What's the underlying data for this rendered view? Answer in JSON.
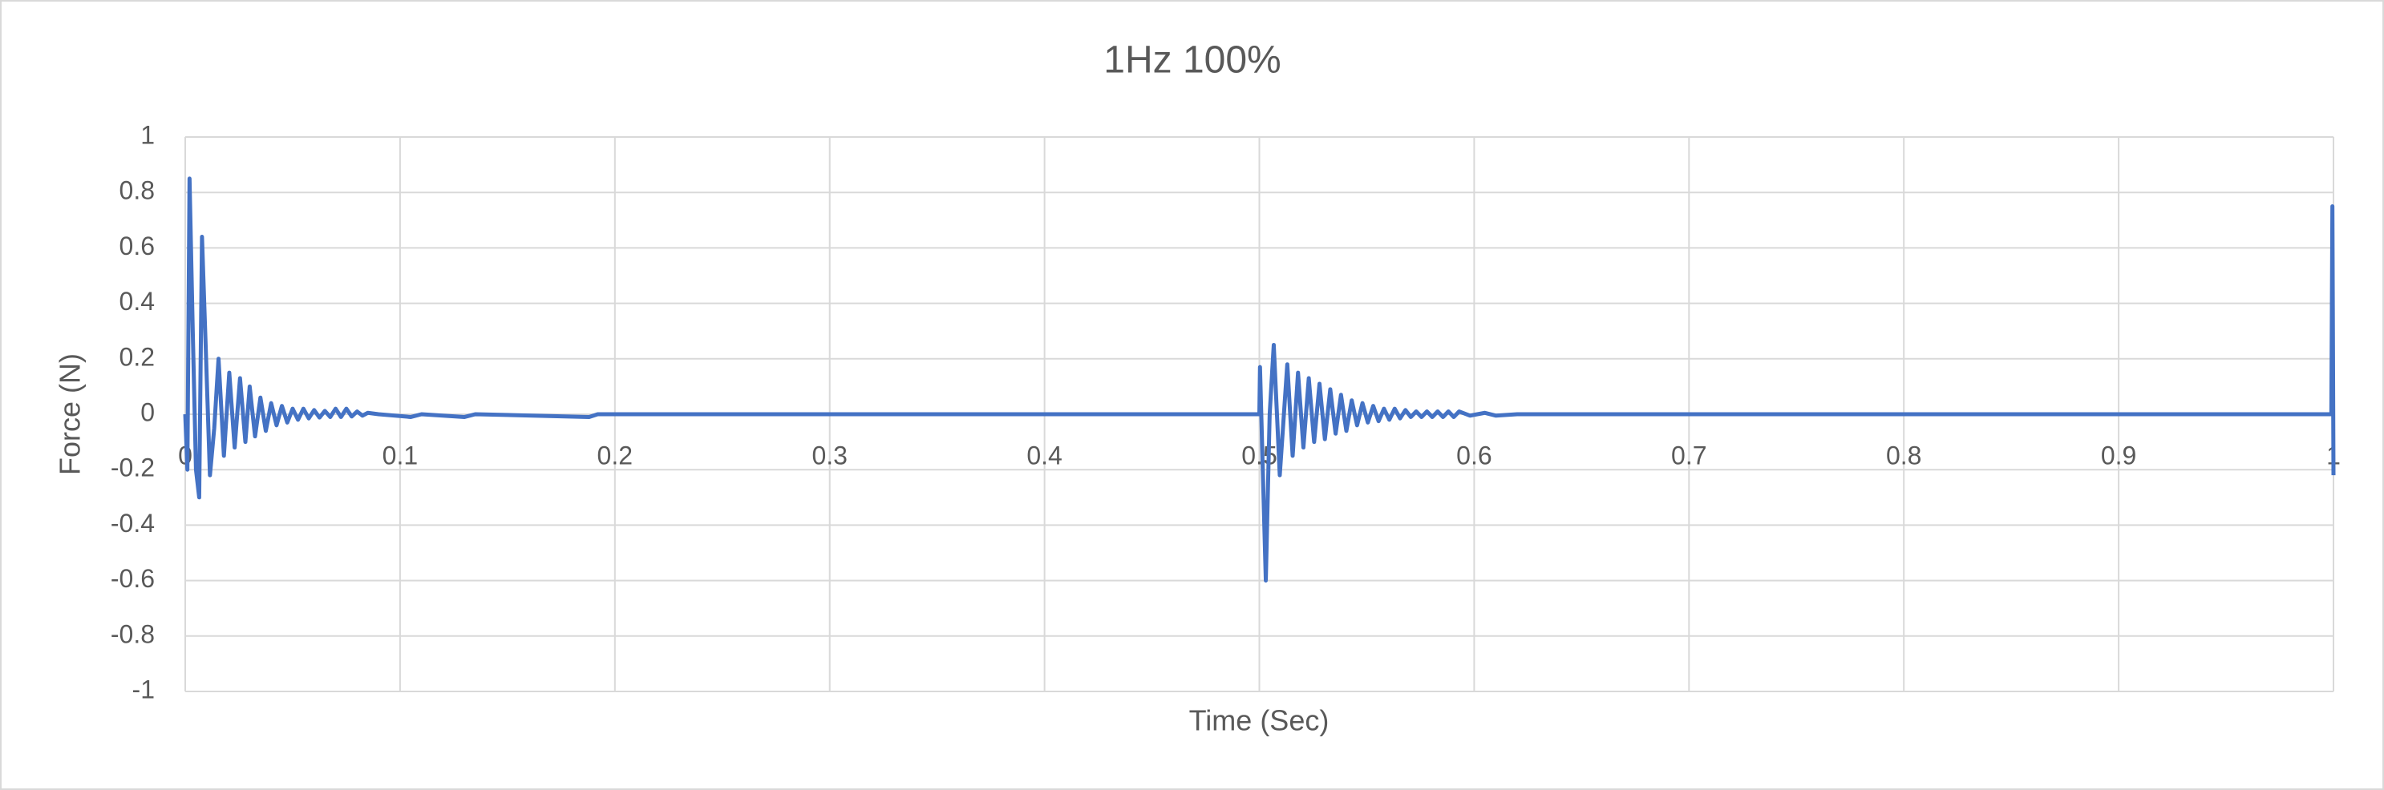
{
  "chart_data": {
    "type": "line",
    "title": "1Hz 100%",
    "x_label": "Time (Sec)",
    "y_label": "Force (N)",
    "x": [
      0,
      0.001,
      0.002,
      0.0035,
      0.005,
      0.0065,
      0.0078,
      0.0095,
      0.0115,
      0.0135,
      0.0155,
      0.018,
      0.0205,
      0.023,
      0.0255,
      0.028,
      0.03,
      0.0325,
      0.035,
      0.0375,
      0.04,
      0.0425,
      0.045,
      0.0475,
      0.05,
      0.0525,
      0.055,
      0.0575,
      0.06,
      0.0625,
      0.065,
      0.0675,
      0.07,
      0.0725,
      0.075,
      0.0775,
      0.08,
      0.0825,
      0.085,
      0.09,
      0.105,
      0.11,
      0.13,
      0.135,
      0.188,
      0.192,
      0.5,
      0.5003,
      0.503,
      0.5048,
      0.5067,
      0.5095,
      0.513,
      0.5155,
      0.518,
      0.5205,
      0.523,
      0.5255,
      0.528,
      0.5305,
      0.533,
      0.5355,
      0.538,
      0.5405,
      0.543,
      0.5455,
      0.548,
      0.5505,
      0.553,
      0.5555,
      0.558,
      0.5605,
      0.563,
      0.5655,
      0.568,
      0.5705,
      0.573,
      0.5755,
      0.578,
      0.5805,
      0.583,
      0.5855,
      0.588,
      0.5905,
      0.593,
      0.598,
      0.605,
      0.61,
      0.62,
      0.999,
      0.9995,
      1
    ],
    "values": [
      0,
      -0.2,
      0.85,
      0.3,
      -0.2,
      -0.3,
      0.64,
      0.25,
      -0.22,
      -0.05,
      0.2,
      -0.15,
      0.15,
      -0.12,
      0.13,
      -0.1,
      0.1,
      -0.08,
      0.06,
      -0.06,
      0.04,
      -0.04,
      0.03,
      -0.03,
      0.02,
      -0.02,
      0.02,
      -0.015,
      0.015,
      -0.012,
      0.012,
      -0.01,
      0.02,
      -0.01,
      0.02,
      -0.008,
      0.01,
      -0.005,
      0.005,
      0,
      -0.01,
      0,
      -0.01,
      0,
      -0.01,
      0,
      0,
      0.17,
      -0.6,
      0,
      0.25,
      -0.22,
      0.18,
      -0.15,
      0.15,
      -0.12,
      0.13,
      -0.1,
      0.11,
      -0.09,
      0.09,
      -0.07,
      0.07,
      -0.06,
      0.05,
      -0.04,
      0.04,
      -0.03,
      0.03,
      -0.025,
      0.02,
      -0.02,
      0.02,
      -0.015,
      0.015,
      -0.01,
      0.01,
      -0.01,
      0.01,
      -0.01,
      0.01,
      -0.01,
      0.01,
      -0.01,
      0.01,
      -0.005,
      0.005,
      -0.005,
      0,
      0,
      0.75,
      -0.22
    ],
    "color": "#4472c4",
    "xlim": [
      0,
      1
    ],
    "xticks": [
      0,
      0.1,
      0.2,
      0.3,
      0.4,
      0.5,
      0.6,
      0.7,
      0.8,
      0.9,
      1
    ],
    "ylim": [
      -1,
      1
    ],
    "yticks": [
      -1,
      -0.8,
      -0.6,
      -0.4,
      -0.2,
      0,
      0.2,
      0.4,
      0.6,
      0.8,
      1
    ],
    "grid": true
  }
}
